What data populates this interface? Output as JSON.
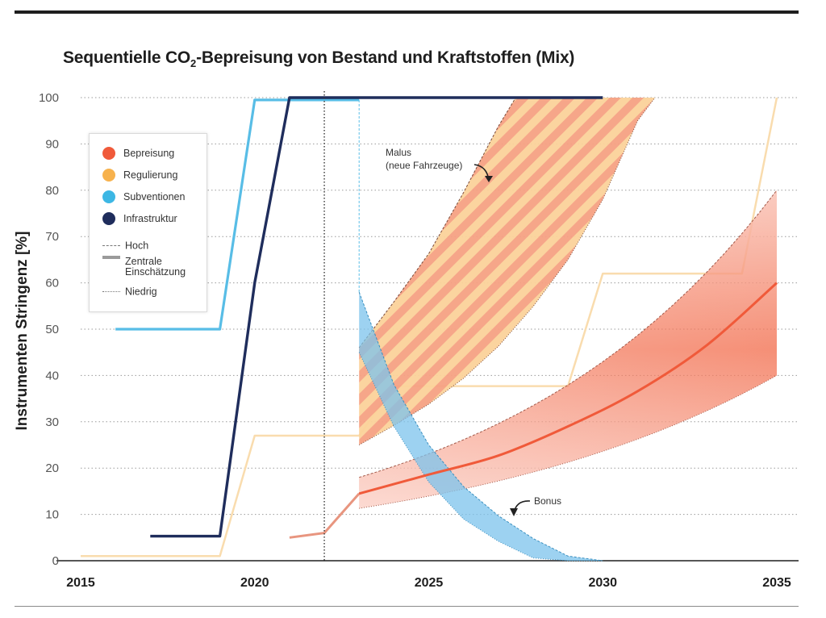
{
  "title_parts": {
    "pre": "Sequentielle CO",
    "sub": "2",
    "post": "-Bepreisung von Bestand und Kraftstoffen (Mix)"
  },
  "legend": {
    "instruments": [
      {
        "label": "Bepreisung",
        "color": "#f05a3a"
      },
      {
        "label": "Regulierung",
        "color": "#f7b24d"
      },
      {
        "label": "Subventionen",
        "color": "#3db7e4"
      },
      {
        "label": "Infrastruktur",
        "color": "#1f2d5c"
      }
    ],
    "scenarios": {
      "high": "Hoch",
      "central_1": "Zentrale",
      "central_2": "Einschätzung",
      "low": "Niedrig"
    }
  },
  "annotations": {
    "malus_1": "Malus",
    "malus_2": "(neue Fahrzeuge)",
    "bonus": "Bonus"
  },
  "chart_data": {
    "type": "line",
    "title": "Sequentielle CO2-Bepreisung von Bestand und Kraftstoffen (Mix)",
    "xlabel": "",
    "ylabel": "Instrumenten Stringenz  [%]",
    "xlim": [
      2015,
      2035
    ],
    "ylim": [
      0,
      100
    ],
    "x_ticks": [
      "2015",
      "2020",
      "2025",
      "2030",
      "2035"
    ],
    "y_ticks": [
      "0",
      "10",
      "20",
      "30",
      "40",
      "50",
      "60",
      "70",
      "80",
      "90",
      "100"
    ],
    "grid": true,
    "legend_position": "top-left",
    "reference_line_x": 2022,
    "series": [
      {
        "name": "Subventionen",
        "type": "line",
        "color": "#58bde6",
        "x": [
          2016,
          2019,
          2020,
          2023
        ],
        "y": [
          50,
          50,
          99.5,
          99.5
        ]
      },
      {
        "name": "Infrastruktur",
        "type": "line",
        "color": "#1f2d5c",
        "x": [
          2017,
          2019,
          2020,
          2021,
          2030
        ],
        "y": [
          5.3,
          5.3,
          60,
          100,
          100
        ]
      },
      {
        "name": "Regulierung",
        "type": "step-line",
        "color": "#f9dcae",
        "x": [
          2015,
          2019,
          2020,
          2023,
          2024,
          2029,
          2030,
          2034,
          2035
        ],
        "y": [
          1,
          1,
          27,
          27,
          37.7,
          37.7,
          62,
          62,
          100
        ]
      },
      {
        "name": "Bepreisung",
        "type": "line",
        "color": "#f05a3a",
        "x": [
          2021,
          2022,
          2023,
          2025,
          2027,
          2029,
          2031,
          2033,
          2035
        ],
        "y": [
          5,
          6,
          14.5,
          18.6,
          22.7,
          29,
          36.6,
          46.6,
          60
        ],
        "band_high_x": [
          2023,
          2035
        ],
        "band_high_y": [
          18,
          80
        ],
        "band_low_x": [
          2023,
          2035
        ],
        "band_low_y": [
          11.3,
          40
        ]
      },
      {
        "name": "Malus (neue Fahrzeuge)",
        "type": "band",
        "color": "#f7b24d",
        "x": [
          2023,
          2024,
          2025,
          2026,
          2027,
          2028,
          2029,
          2030,
          2031
        ],
        "high": [
          46,
          55.9,
          66.3,
          79.5,
          93.8,
          100,
          100,
          100,
          100
        ],
        "low": [
          25,
          29.2,
          33.8,
          39.4,
          46.3,
          54.9,
          65,
          78,
          95
        ]
      },
      {
        "name": "Bonus",
        "type": "band",
        "color": "#7cc3ec",
        "x": [
          2023,
          2024,
          2025,
          2026,
          2027,
          2028,
          2029,
          2030
        ],
        "high": [
          58,
          38,
          25,
          16,
          9.7,
          4.8,
          1,
          0
        ],
        "low": [
          45,
          29,
          17,
          9,
          4.2,
          0.6,
          0,
          0
        ]
      }
    ]
  }
}
